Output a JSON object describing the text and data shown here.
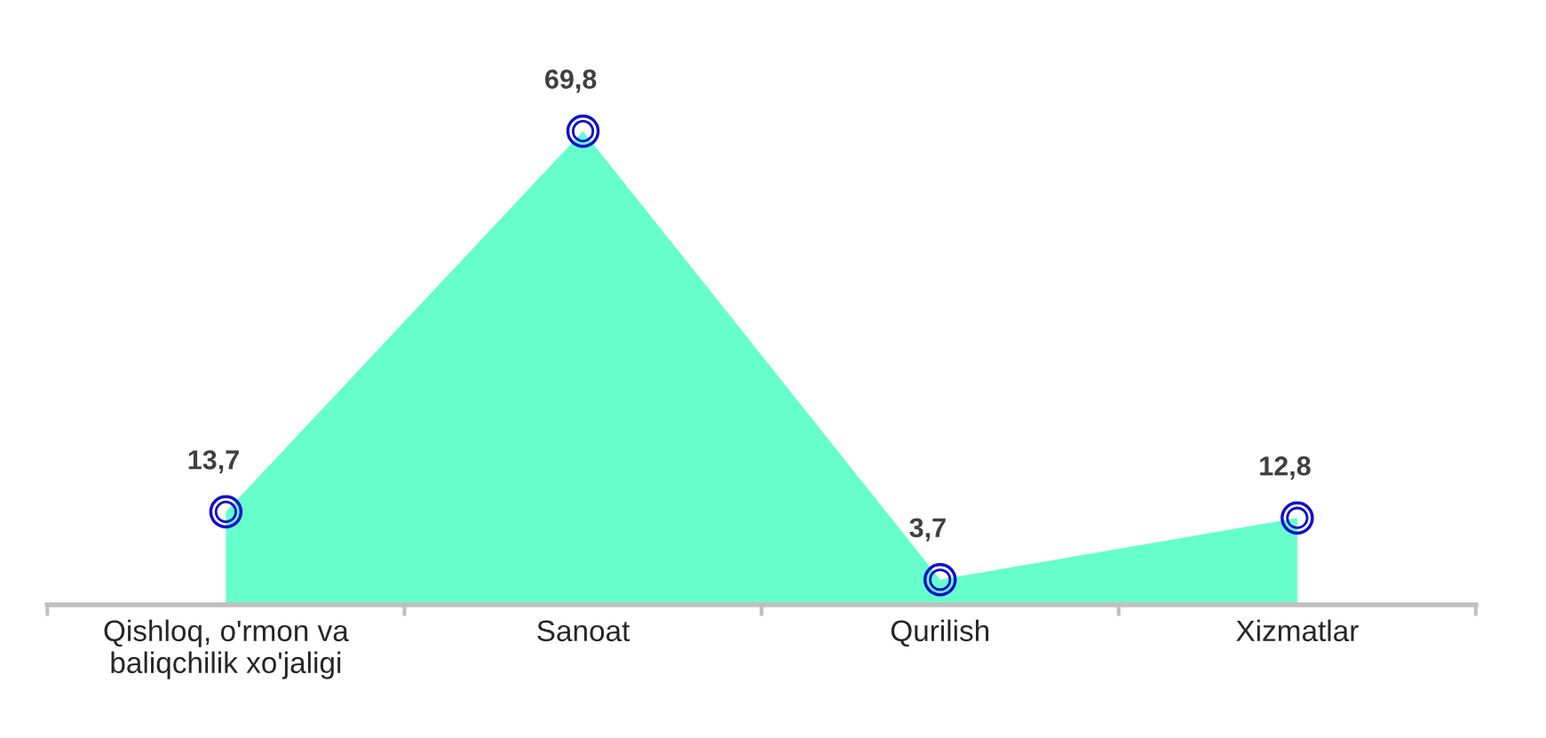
{
  "chart_data": {
    "type": "area",
    "categories": [
      "Qishloq, o'rmon va\nbaliqchilik xo'jaligi",
      "Sanoat",
      "Qurilish",
      "Xizmatlar"
    ],
    "series": [
      {
        "color": "#66ffcc",
        "values": [
          13.7,
          69.8,
          3.7,
          12.8
        ],
        "value_labels": [
          "13,7",
          "69,8",
          "3,7",
          "12,8"
        ]
      }
    ],
    "marker": "circle",
    "grid": false,
    "tick_labels": "x"
  }
}
